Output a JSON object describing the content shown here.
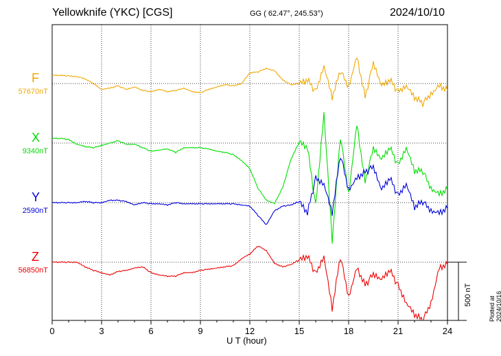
{
  "header": {
    "station": "Yellowknife (YKC)  [CGS]",
    "coords": "GG ( 62.47°, 245.53°)",
    "date": "2024/10/10"
  },
  "footer": {
    "xlabel": "U T (hour)",
    "plotted": "Plotted at 2024/10/16 21:14 UT",
    "scale_label": "500 nT"
  },
  "chart_data": {
    "type": "line",
    "xlabel": "U T (hour)",
    "xlim": [
      0,
      24
    ],
    "x_ticks": [
      0,
      3,
      6,
      9,
      12,
      15,
      18,
      21,
      24
    ],
    "scale_bar_nT": 500,
    "grid": true,
    "x": [
      0,
      0.5,
      1,
      1.5,
      2,
      2.5,
      3,
      3.5,
      4,
      4.5,
      5,
      5.5,
      6,
      6.5,
      7,
      7.5,
      8,
      8.5,
      9,
      9.5,
      10,
      10.5,
      11,
      11.5,
      12,
      12.5,
      13,
      13.5,
      14,
      14.5,
      15,
      15.5,
      16,
      16.5,
      17,
      17.5,
      18,
      18.5,
      19,
      19.5,
      20,
      20.5,
      21,
      21.5,
      22,
      22.5,
      23,
      23.5,
      24
    ],
    "series": [
      {
        "name": "F",
        "baseline_label": "57670nT",
        "color": "#f0a800",
        "values": [
          57740,
          57740,
          57735,
          57730,
          57710,
          57670,
          57620,
          57630,
          57650,
          57620,
          57640,
          57610,
          57600,
          57620,
          57600,
          57610,
          57630,
          57600,
          57590,
          57620,
          57640,
          57660,
          57650,
          57670,
          57760,
          57770,
          57800,
          57780,
          57700,
          57660,
          57670,
          57700,
          57600,
          57820,
          57550,
          57780,
          57640,
          57900,
          57550,
          57850,
          57650,
          57700,
          57600,
          57650,
          57550,
          57500,
          57580,
          57650,
          57610
        ]
      },
      {
        "name": "X",
        "baseline_label": "9340nT",
        "color": "#00dd00",
        "values": [
          9380,
          9380,
          9370,
          9330,
          9310,
          9300,
          9320,
          9340,
          9360,
          9330,
          9330,
          9300,
          9270,
          9280,
          9290,
          9260,
          9300,
          9300,
          9300,
          9290,
          9270,
          9260,
          9240,
          9190,
          9120,
          8950,
          8850,
          8820,
          8960,
          9200,
          9350,
          9300,
          8800,
          9600,
          8500,
          9400,
          8900,
          9500,
          9000,
          9300,
          9200,
          9300,
          9150,
          9300,
          9100,
          9100,
          8950,
          8900,
          8940
        ]
      },
      {
        "name": "Y",
        "baseline_label": "2590nT",
        "color": "#0000dd",
        "values": [
          2590,
          2590,
          2590,
          2590,
          2600,
          2590,
          2590,
          2610,
          2610,
          2600,
          2570,
          2590,
          2580,
          2580,
          2570,
          2590,
          2580,
          2580,
          2580,
          2580,
          2580,
          2580,
          2580,
          2570,
          2560,
          2480,
          2400,
          2520,
          2560,
          2570,
          2600,
          2500,
          2800,
          2750,
          2500,
          3000,
          2700,
          2800,
          2850,
          2900,
          2700,
          2800,
          2650,
          2750,
          2550,
          2600,
          2520,
          2500,
          2540
        ]
      },
      {
        "name": "Z",
        "baseline_label": "56850nT",
        "color": "#ee0000",
        "values": [
          56850,
          56850,
          56850,
          56850,
          56810,
          56780,
          56760,
          56740,
          56770,
          56780,
          56800,
          56810,
          56760,
          56740,
          56730,
          56730,
          56760,
          56760,
          56780,
          56790,
          56800,
          56810,
          56820,
          56880,
          56920,
          56990,
          56950,
          56840,
          56810,
          56830,
          56870,
          56900,
          56750,
          56900,
          56450,
          56900,
          56550,
          56800,
          56650,
          56750,
          56700,
          56780,
          56650,
          56500,
          56400,
          56350,
          56500,
          56800,
          56830
        ]
      }
    ]
  }
}
